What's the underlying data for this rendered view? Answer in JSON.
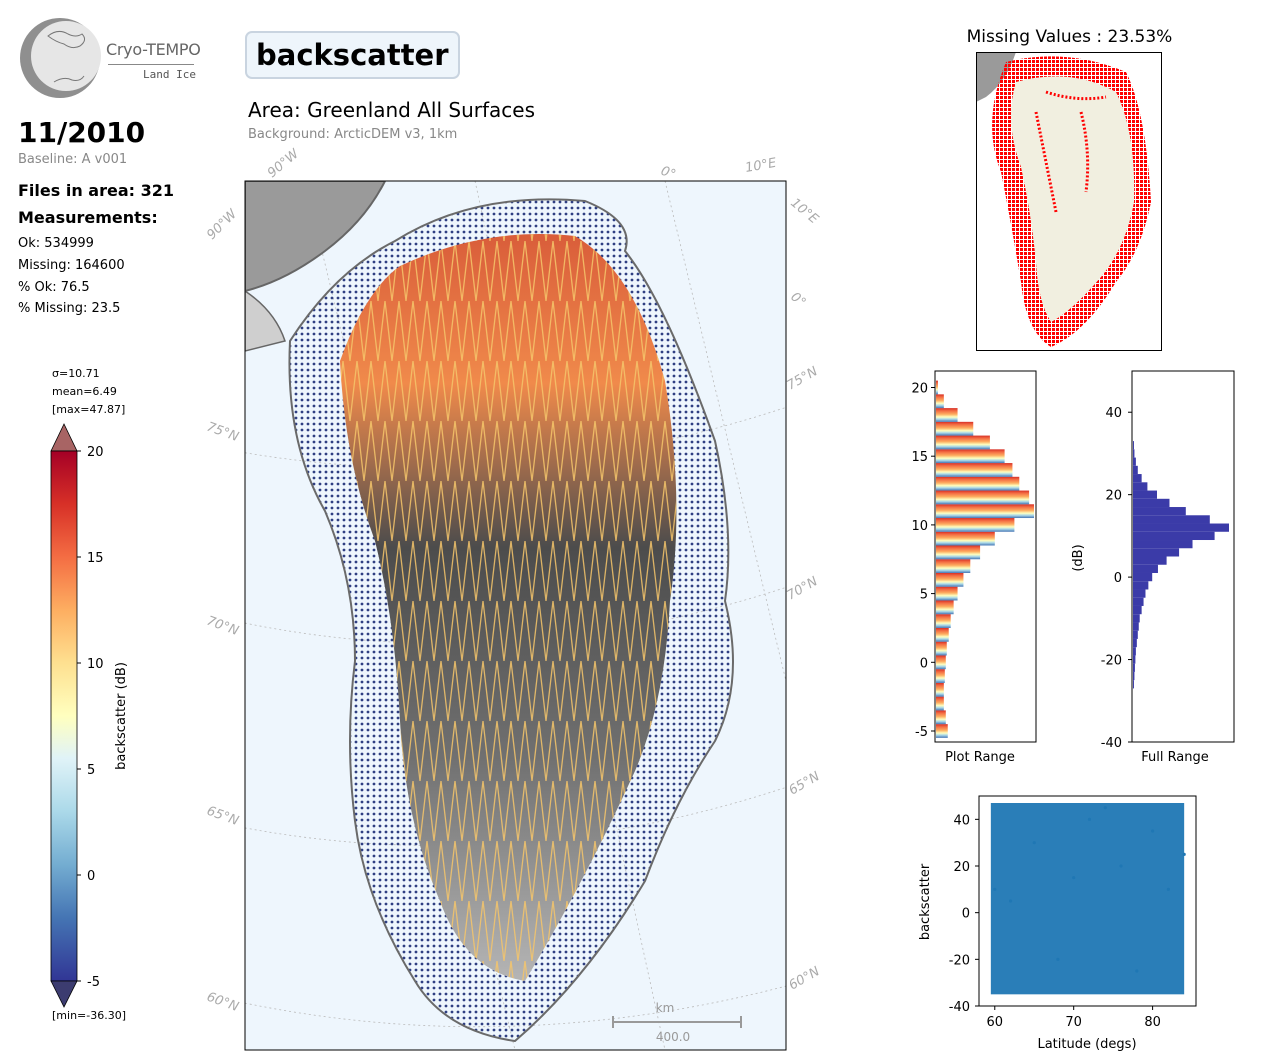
{
  "logo": {
    "name": "Cryo-TEMPO",
    "sub": "Land Ice"
  },
  "summary": {
    "date": "11/2010",
    "baseline": "Baseline: A v001",
    "files": "Files in area: 321",
    "measurements_title": "Measurements:",
    "ok": "Ok: 534999",
    "missing": "Missing: 164600",
    "pct_ok": "% Ok: 76.5",
    "pct_missing": "% Missing: 23.5"
  },
  "header": {
    "parameter": "backscatter",
    "area": "Area: Greenland All Surfaces",
    "background": "Background: ArcticDEM v3, 1km"
  },
  "map": {
    "lat_labels": [
      "75°N",
      "70°N",
      "65°N",
      "60°N",
      "75°N",
      "70°N",
      "65°N",
      "60°N"
    ],
    "lon_labels": [
      "90°W",
      "90°W",
      "0°",
      "10°E",
      "10°E",
      "0°"
    ],
    "scalebar_unit": "km",
    "scalebar_value": "400.0"
  },
  "colorbar": {
    "stats": [
      "σ=10.71",
      "mean=6.49",
      "[max=47.87]"
    ],
    "min_label": "[min=-36.30]",
    "label": "backscatter (dB)",
    "ticks": [
      20,
      15,
      10,
      5,
      0,
      -5
    ],
    "range": [
      -5,
      20
    ]
  },
  "missing_map": {
    "title": "Missing Values : 23.53%"
  },
  "colors": {
    "ocean": "#eef6fd",
    "land": "#f1efe0",
    "missing": "#ff0000",
    "full_hist": "#3b3ba8",
    "scatter": "#1f77b4"
  },
  "chart_data": [
    {
      "type": "bar",
      "orientation": "horizontal",
      "title": "",
      "xlabel": "Plot Range",
      "ylabel": "",
      "ylim": [
        -5.8,
        21.2
      ],
      "yticks": [
        -5,
        0,
        5,
        10,
        15,
        20
      ],
      "categories": [
        -5,
        -4,
        -3,
        -2,
        -1,
        0,
        1,
        2,
        3,
        4,
        5,
        6,
        7,
        8,
        9,
        10,
        11,
        12,
        13,
        14,
        15,
        16,
        17,
        18,
        19,
        20
      ],
      "values": [
        0.12,
        0.1,
        0.08,
        0.08,
        0.09,
        0.1,
        0.11,
        0.13,
        0.15,
        0.18,
        0.22,
        0.28,
        0.35,
        0.45,
        0.6,
        0.8,
        1.0,
        0.95,
        0.85,
        0.78,
        0.7,
        0.55,
        0.38,
        0.22,
        0.08,
        0.02
      ]
    },
    {
      "type": "bar",
      "orientation": "horizontal",
      "title": "",
      "xlabel": "Full Range",
      "ylabel": "(dB)",
      "ylim": [
        -40,
        50
      ],
      "yticks": [
        -40,
        -20,
        0,
        20,
        40
      ],
      "categories": [
        -26,
        -24,
        -22,
        -20,
        -18,
        -16,
        -14,
        -12,
        -10,
        -8,
        -6,
        -4,
        -2,
        0,
        2,
        4,
        6,
        8,
        10,
        12,
        14,
        16,
        18,
        20,
        22,
        24,
        26,
        28,
        30,
        32
      ],
      "values": [
        0.01,
        0.015,
        0.02,
        0.025,
        0.03,
        0.04,
        0.05,
        0.06,
        0.07,
        0.09,
        0.11,
        0.13,
        0.16,
        0.2,
        0.26,
        0.35,
        0.48,
        0.62,
        0.85,
        1.0,
        0.8,
        0.55,
        0.38,
        0.25,
        0.15,
        0.09,
        0.05,
        0.03,
        0.015,
        0.01
      ]
    },
    {
      "type": "scatter",
      "title": "",
      "xlabel": "Latitude (degs)",
      "ylabel": "backscatter",
      "xlim": [
        58,
        85.5
      ],
      "ylim": [
        -40,
        50
      ],
      "xticks": [
        60,
        70,
        80
      ],
      "yticks": [
        -40,
        -20,
        0,
        20,
        40
      ],
      "x_range": [
        59.5,
        84
      ],
      "y_band": [
        -35,
        47
      ],
      "series": [
        {
          "values": [
            [
              60,
              10
            ],
            [
              62,
              5
            ],
            [
              65,
              30
            ],
            [
              68,
              -20
            ],
            [
              70,
              15
            ],
            [
              72,
              40
            ],
            [
              74,
              45
            ],
            [
              76,
              20
            ],
            [
              78,
              -25
            ],
            [
              80,
              35
            ],
            [
              82,
              10
            ],
            [
              84,
              25
            ]
          ]
        }
      ]
    }
  ]
}
